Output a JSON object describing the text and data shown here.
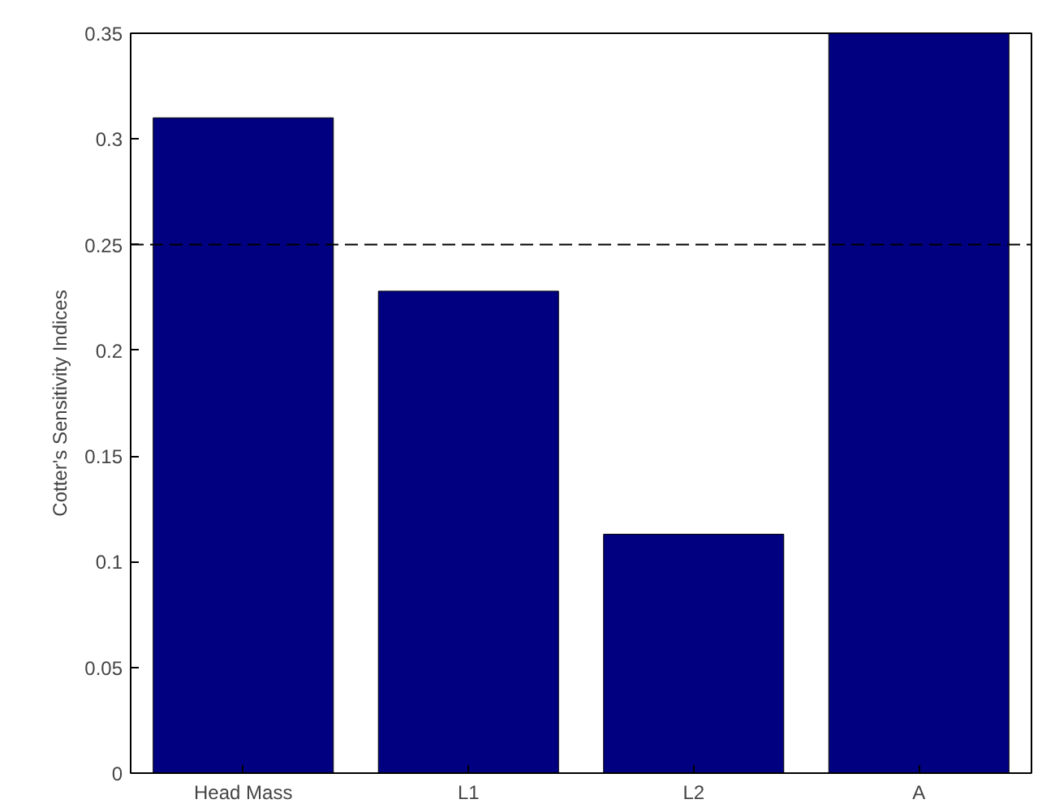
{
  "chart_data": {
    "type": "bar",
    "ylabel": "Cotter's Sensitivity Indices",
    "categories": [
      "Head Mass",
      "L1",
      "L2",
      "A"
    ],
    "values": [
      0.31,
      0.228,
      0.113,
      0.35
    ],
    "color": "#000080",
    "ylim": [
      0,
      0.35
    ],
    "yticks": [
      0,
      0.05,
      0.1,
      0.15,
      0.2,
      0.25,
      0.3,
      0.35
    ],
    "grid": false,
    "ref_lines": [
      {
        "axis": "y",
        "value": 0.25,
        "label": null,
        "color": "#000000",
        "line_style": "dashed"
      }
    ]
  }
}
